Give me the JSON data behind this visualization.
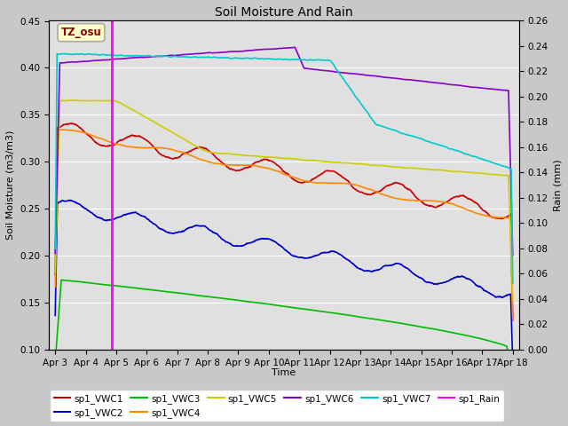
{
  "title": "Soil Moisture And Rain",
  "ylabel_left": "Soil Moisture (m3/m3)",
  "ylabel_right": "Rain (mm)",
  "xlabel": "Time",
  "annotation_text": "TZ_osu",
  "ylim_left": [
    0.1,
    0.45
  ],
  "ylim_right": [
    0.0,
    0.26
  ],
  "yticks_left": [
    0.1,
    0.15,
    0.2,
    0.25,
    0.3,
    0.35,
    0.4,
    0.45
  ],
  "yticks_right": [
    0.0,
    0.02,
    0.04,
    0.06,
    0.08,
    0.1,
    0.12,
    0.14,
    0.16,
    0.18,
    0.2,
    0.22,
    0.24,
    0.26
  ],
  "num_points": 1500,
  "vline_x": 1.85,
  "colors": {
    "VWC1": "#cc0000",
    "VWC2": "#0000cc",
    "VWC3": "#00bb00",
    "VWC4": "#ff8800",
    "VWC5": "#cccc00",
    "VWC6": "#8800cc",
    "VWC7": "#00cccc",
    "Rain": "#ff00ff"
  },
  "fig_bg": "#c8c8c8",
  "ax_bg": "#e0e0e0"
}
